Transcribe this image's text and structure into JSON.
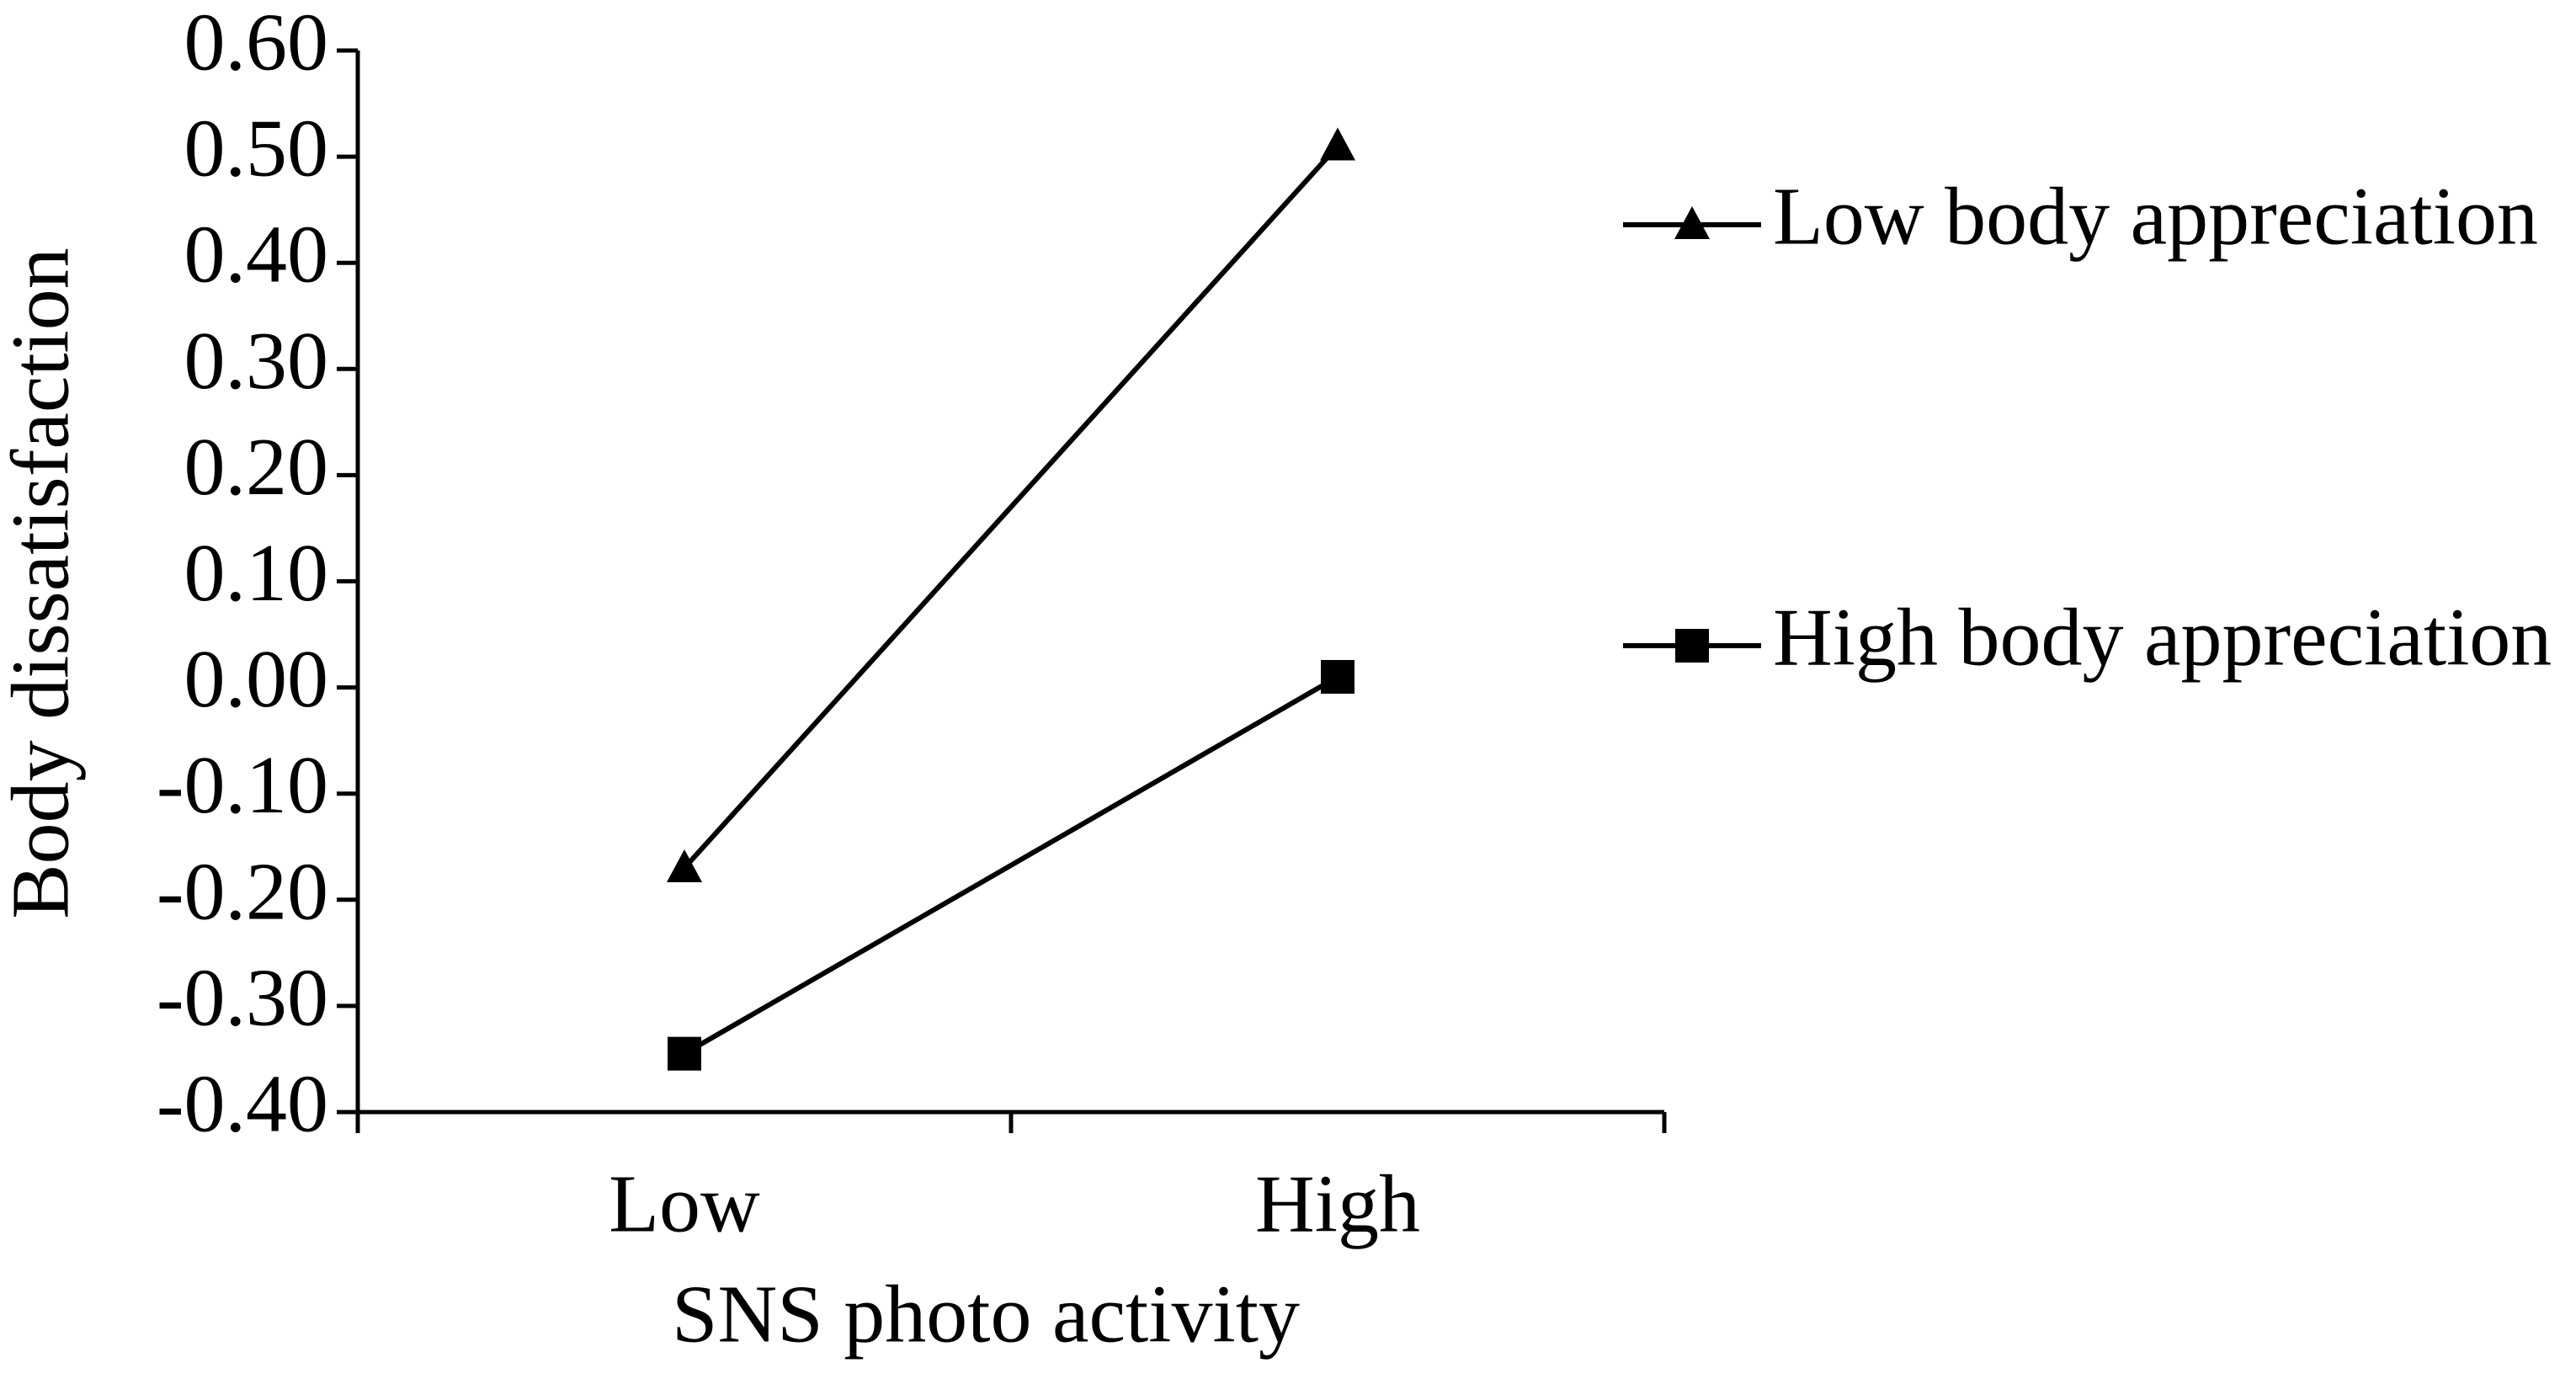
{
  "chart_data": {
    "type": "line",
    "x_label": "SNS photo activity",
    "y_label": "Body  dissatisfaction",
    "categories": [
      "Low",
      "High"
    ],
    "series": [
      {
        "name": "Low body appreciation",
        "color": "#000000",
        "marker": "triangle",
        "values": [
          -0.17,
          0.51
        ]
      },
      {
        "name": "High body appreciation",
        "color": "#000000",
        "marker": "square",
        "values": [
          -0.345,
          0.01
        ]
      }
    ],
    "ylim": [
      -0.4,
      0.6
    ],
    "yticks": [
      {
        "value": 0.6,
        "label": "0.60"
      },
      {
        "value": 0.5,
        "label": "0.50"
      },
      {
        "value": 0.4,
        "label": "0.40"
      },
      {
        "value": 0.3,
        "label": "0.30"
      },
      {
        "value": 0.2,
        "label": "0.20"
      },
      {
        "value": 0.1,
        "label": "0.10"
      },
      {
        "value": 0,
        "label": "0.00"
      },
      {
        "value": -0.1,
        "label": "-0.10"
      },
      {
        "value": -0.2,
        "label": "-0.20"
      },
      {
        "value": -0.3,
        "label": "-0.30"
      },
      {
        "value": -0.4,
        "label": "-0.40"
      }
    ],
    "grid": false,
    "legend": "right"
  }
}
